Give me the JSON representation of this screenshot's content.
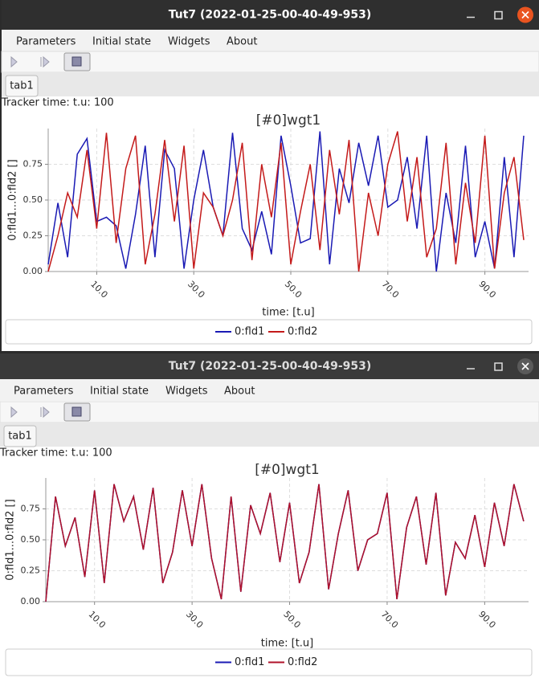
{
  "windows": [
    {
      "title": "Tut7 (2022-01-25-00-40-49-953)",
      "menu": [
        "Parameters",
        "Initial state",
        "Widgets",
        "About"
      ],
      "tab": "tab1",
      "tracker": "Tracker time: t.u: 100",
      "chart_data": {
        "type": "line",
        "title": "[#0]wgt1",
        "x_label": "time:  [t.u]",
        "y_label": "0:fld1...0:fld2 []",
        "x": [
          0,
          2,
          4,
          6,
          8,
          10,
          12,
          14,
          16,
          18,
          20,
          22,
          24,
          26,
          28,
          30,
          32,
          34,
          36,
          38,
          40,
          42,
          44,
          46,
          48,
          50,
          52,
          54,
          56,
          58,
          60,
          62,
          64,
          66,
          68,
          70,
          72,
          74,
          76,
          78,
          80,
          82,
          84,
          86,
          88,
          90,
          92,
          94,
          96,
          98
        ],
        "xlim": [
          0,
          99
        ],
        "xticks": [
          {
            "value": 10,
            "label": "10.0"
          },
          {
            "value": 30,
            "label": "30.0"
          },
          {
            "value": 50,
            "label": "50.0"
          },
          {
            "value": 70,
            "label": "70.0"
          },
          {
            "value": 90,
            "label": "90.0"
          }
        ],
        "ylim": [
          0,
          1
        ],
        "yticks": [
          {
            "value": 0,
            "label": "0.00"
          },
          0.25,
          {
            "value": 0.5,
            "label": "0.50"
          },
          0.75
        ],
        "grid": true,
        "series": [
          {
            "name": "0:fld1",
            "color": "#1a1ab4",
            "values": [
              0.05,
              0.48,
              0.1,
              0.82,
              0.93,
              0.35,
              0.38,
              0.32,
              0.02,
              0.4,
              0.88,
              0.1,
              0.85,
              0.72,
              0.02,
              0.5,
              0.85,
              0.45,
              0.25,
              0.97,
              0.3,
              0.15,
              0.42,
              0.12,
              0.95,
              0.6,
              0.2,
              0.23,
              0.98,
              0.05,
              0.72,
              0.48,
              0.9,
              0.6,
              0.95,
              0.45,
              0.5,
              0.8,
              0.3,
              0.95,
              0.0,
              0.55,
              0.2,
              0.88,
              0.1,
              0.35,
              0.02,
              0.8,
              0.1,
              0.95
            ]
          },
          {
            "name": "0:fld2",
            "color": "#c41a1a",
            "values": [
              0.0,
              0.25,
              0.55,
              0.38,
              0.85,
              0.3,
              0.97,
              0.2,
              0.72,
              0.95,
              0.05,
              0.4,
              0.92,
              0.35,
              0.88,
              0.02,
              0.55,
              0.45,
              0.25,
              0.5,
              0.9,
              0.08,
              0.75,
              0.38,
              0.9,
              0.05,
              0.42,
              0.75,
              0.15,
              0.85,
              0.4,
              0.92,
              0.0,
              0.55,
              0.25,
              0.75,
              0.98,
              0.35,
              0.8,
              0.1,
              0.3,
              0.9,
              0.05,
              0.62,
              0.2,
              0.95,
              0.02,
              0.55,
              0.8,
              0.22
            ]
          }
        ]
      }
    },
    {
      "title": "Tut7 (2022-01-25-00-40-49-953)",
      "menu": [
        "Parameters",
        "Initial state",
        "Widgets",
        "About"
      ],
      "tab": "tab1",
      "tracker": "Tracker time: t.u: 100",
      "chart_data": {
        "type": "line",
        "title": "[#0]wgt1",
        "x_label": "time:  [t.u]",
        "y_label": "0:fld1...0:fld2 []",
        "x": [
          0,
          2,
          4,
          6,
          8,
          10,
          12,
          14,
          16,
          18,
          20,
          22,
          24,
          26,
          28,
          30,
          32,
          34,
          36,
          38,
          40,
          42,
          44,
          46,
          48,
          50,
          52,
          54,
          56,
          58,
          60,
          62,
          64,
          66,
          68,
          70,
          72,
          74,
          76,
          78,
          80,
          82,
          84,
          86,
          88,
          90,
          92,
          94,
          96,
          98
        ],
        "xlim": [
          0,
          99
        ],
        "xticks": [
          {
            "value": 10,
            "label": "10.0"
          },
          {
            "value": 30,
            "label": "30.0"
          },
          {
            "value": 50,
            "label": "50.0"
          },
          {
            "value": 70,
            "label": "70.0"
          },
          {
            "value": 90,
            "label": "90.0"
          }
        ],
        "ylim": [
          0,
          1
        ],
        "yticks": [
          {
            "value": 0,
            "label": "0.00"
          },
          0.25,
          {
            "value": 0.5,
            "label": "0.50"
          },
          0.75
        ],
        "grid": true,
        "series": [
          {
            "name": "0:fld1",
            "color": "#1a1ab4",
            "values": [
              0.0,
              0.85,
              0.45,
              0.68,
              0.2,
              0.9,
              0.15,
              0.95,
              0.65,
              0.85,
              0.42,
              0.92,
              0.15,
              0.4,
              0.9,
              0.45,
              0.95,
              0.35,
              0.02,
              0.85,
              0.08,
              0.78,
              0.55,
              0.88,
              0.32,
              0.8,
              0.15,
              0.4,
              0.95,
              0.1,
              0.55,
              0.9,
              0.25,
              0.5,
              0.55,
              0.88,
              0.02,
              0.6,
              0.85,
              0.3,
              0.88,
              0.05,
              0.48,
              0.35,
              0.7,
              0.28,
              0.8,
              0.45,
              0.95,
              0.65
            ]
          },
          {
            "name": "0:fld2",
            "color": "#b0122a",
            "values": [
              0.0,
              0.85,
              0.45,
              0.68,
              0.2,
              0.9,
              0.15,
              0.95,
              0.65,
              0.85,
              0.42,
              0.92,
              0.15,
              0.4,
              0.9,
              0.45,
              0.95,
              0.35,
              0.02,
              0.85,
              0.08,
              0.78,
              0.55,
              0.88,
              0.32,
              0.8,
              0.15,
              0.4,
              0.95,
              0.1,
              0.55,
              0.9,
              0.25,
              0.5,
              0.55,
              0.88,
              0.02,
              0.6,
              0.85,
              0.3,
              0.88,
              0.05,
              0.48,
              0.35,
              0.7,
              0.28,
              0.8,
              0.45,
              0.95,
              0.65
            ]
          }
        ]
      }
    }
  ]
}
